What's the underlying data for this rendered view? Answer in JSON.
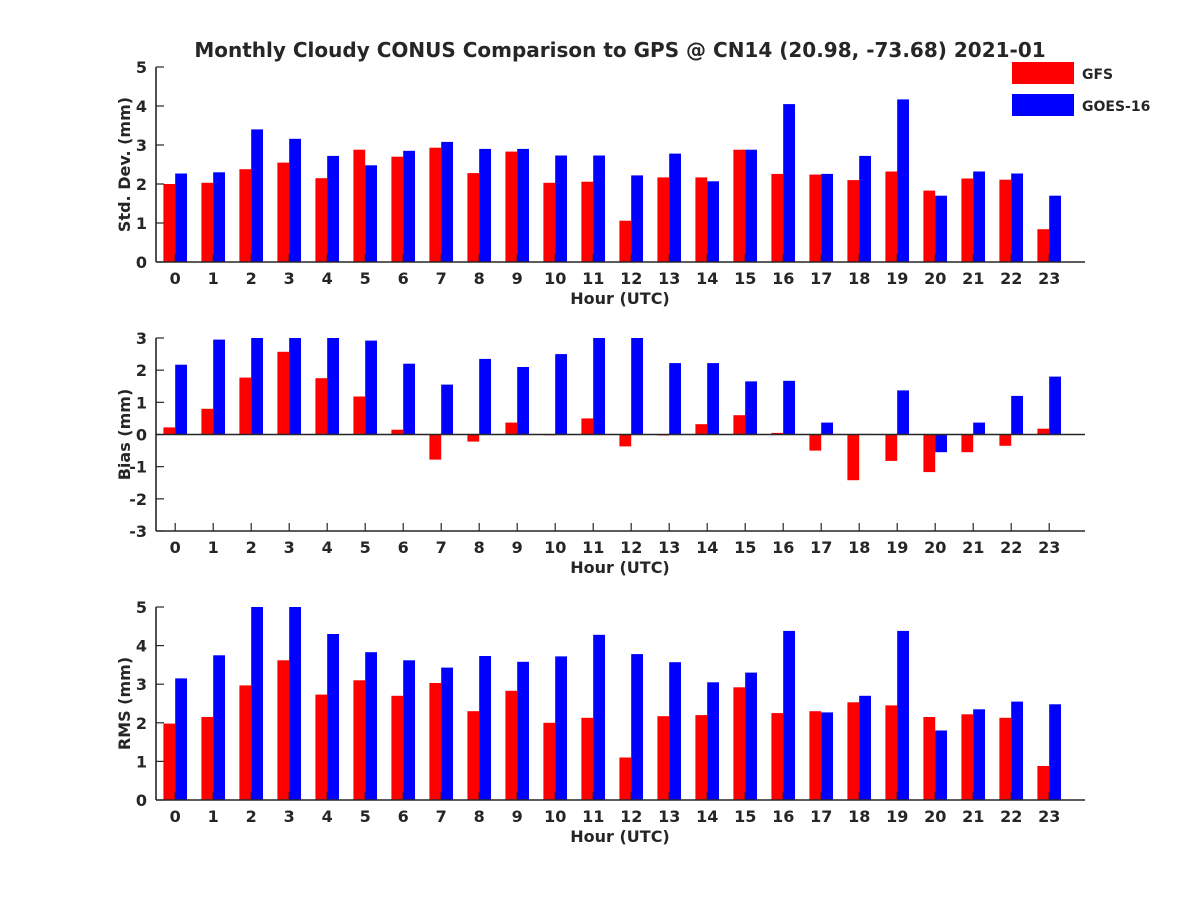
{
  "title": "Monthly Cloudy CONUS Comparison to GPS @ CN14 (20.98, -73.68) 2021-01",
  "legend": [
    {
      "name": "GFS",
      "color": "#ff0000"
    },
    {
      "name": "GOES-16",
      "color": "#0000ff"
    }
  ],
  "chart_data": [
    {
      "type": "bar",
      "ylabel": "Std. Dev. (mm)",
      "xlabel": "Hour (UTC)",
      "ylim": [
        0,
        5
      ],
      "yticks": [
        "0",
        "1",
        "2",
        "3",
        "4",
        "5"
      ],
      "categories": [
        "0",
        "1",
        "2",
        "3",
        "4",
        "5",
        "6",
        "7",
        "8",
        "9",
        "10",
        "11",
        "12",
        "13",
        "14",
        "15",
        "16",
        "17",
        "18",
        "19",
        "20",
        "21",
        "22",
        "23"
      ],
      "series": [
        {
          "name": "GFS",
          "values": [
            2.0,
            2.03,
            2.38,
            2.55,
            2.15,
            2.88,
            2.7,
            2.93,
            2.28,
            2.83,
            2.03,
            2.06,
            1.06,
            2.17,
            2.17,
            2.88,
            2.26,
            2.24,
            2.1,
            2.32,
            1.83,
            2.14,
            2.11,
            0.84
          ]
        },
        {
          "name": "GOES-16",
          "values": [
            2.27,
            2.3,
            3.4,
            3.16,
            2.72,
            2.48,
            2.85,
            3.08,
            2.9,
            2.9,
            2.73,
            2.73,
            2.22,
            2.78,
            2.07,
            2.88,
            4.05,
            2.26,
            2.72,
            4.17,
            1.7,
            2.32,
            2.27,
            1.7
          ]
        }
      ]
    },
    {
      "type": "bar",
      "ylabel": "Bias (mm)",
      "xlabel": "Hour (UTC)",
      "ylim": [
        -3,
        3
      ],
      "yticks": [
        "-3",
        "-2",
        "-1",
        "0",
        "1",
        "2",
        "3"
      ],
      "categories": [
        "0",
        "1",
        "2",
        "3",
        "4",
        "5",
        "6",
        "7",
        "8",
        "9",
        "10",
        "11",
        "12",
        "13",
        "14",
        "15",
        "16",
        "17",
        "18",
        "19",
        "20",
        "21",
        "22",
        "23"
      ],
      "series": [
        {
          "name": "GFS",
          "values": [
            0.22,
            0.8,
            1.77,
            2.57,
            1.75,
            1.18,
            0.15,
            -0.78,
            -0.22,
            0.37,
            0.0,
            0.5,
            -0.37,
            -0.03,
            0.32,
            0.6,
            0.05,
            -0.5,
            -1.42,
            -0.82,
            -1.17,
            -0.55,
            -0.35,
            0.18
          ]
        },
        {
          "name": "GOES-16",
          "values": [
            2.17,
            2.95,
            3.0,
            3.0,
            3.0,
            2.92,
            2.2,
            1.55,
            2.35,
            2.1,
            2.5,
            3.0,
            3.0,
            2.22,
            2.22,
            1.65,
            1.67,
            0.37,
            0.02,
            1.37,
            -0.55,
            0.37,
            1.2,
            1.8
          ]
        }
      ]
    },
    {
      "type": "bar",
      "ylabel": "RMS (mm)",
      "xlabel": "Hour (UTC)",
      "ylim": [
        0,
        5
      ],
      "yticks": [
        "0",
        "1",
        "2",
        "3",
        "4",
        "5"
      ],
      "categories": [
        "0",
        "1",
        "2",
        "3",
        "4",
        "5",
        "6",
        "7",
        "8",
        "9",
        "10",
        "11",
        "12",
        "13",
        "14",
        "15",
        "16",
        "17",
        "18",
        "19",
        "20",
        "21",
        "22",
        "23"
      ],
      "series": [
        {
          "name": "GFS",
          "values": [
            1.98,
            2.15,
            2.97,
            3.62,
            2.73,
            3.1,
            2.7,
            3.03,
            2.3,
            2.83,
            2.0,
            2.13,
            1.1,
            2.17,
            2.2,
            2.92,
            2.25,
            2.3,
            2.53,
            2.45,
            2.15,
            2.22,
            2.13,
            0.88
          ]
        },
        {
          "name": "GOES-16",
          "values": [
            3.15,
            3.75,
            5.0,
            5.0,
            4.3,
            3.83,
            3.62,
            3.43,
            3.73,
            3.58,
            3.72,
            4.28,
            3.78,
            3.57,
            3.05,
            3.3,
            4.38,
            2.27,
            2.7,
            4.38,
            1.8,
            2.35,
            2.55,
            2.48
          ]
        }
      ]
    }
  ]
}
